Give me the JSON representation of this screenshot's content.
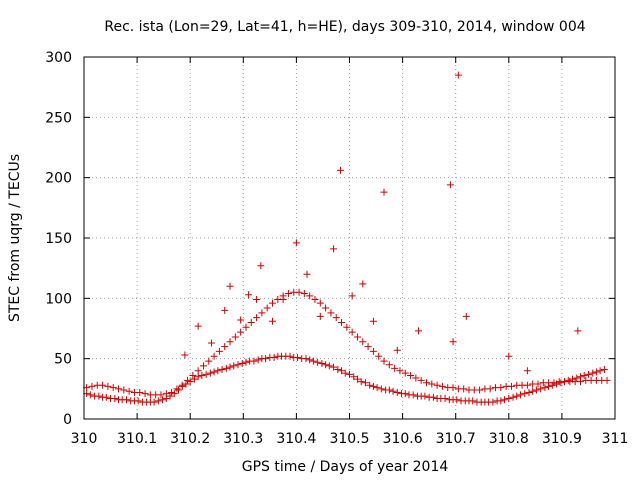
{
  "chart_data": {
    "type": "scatter",
    "title": "Rec. ista (Lon=29, Lat=41, h=HE), days 309-310, 2014, window 004",
    "xlabel": "GPS time / Days of year 2014",
    "ylabel": "STEC from uqrg / TECUs",
    "xlim": [
      310,
      311
    ],
    "ylim": [
      0,
      300
    ],
    "xticks": [
      "310",
      "310.1",
      "310.2",
      "310.3",
      "310.4",
      "310.5",
      "310.6",
      "310.7",
      "310.8",
      "310.9",
      "311"
    ],
    "yticks": [
      "0",
      "50",
      "100",
      "150",
      "200",
      "250",
      "300"
    ],
    "grid": true,
    "marker": "+",
    "color": "#d40000",
    "series": [
      {
        "x": [
          310.005,
          310.012,
          310.02,
          310.028,
          310.035,
          310.042,
          310.05,
          310.058,
          310.065,
          310.072,
          310.08,
          310.088,
          310.095,
          310.102,
          310.11,
          310.118,
          310.125,
          310.132,
          310.14,
          310.148,
          310.155,
          310.162,
          310.17,
          310.178,
          310.185,
          310.192,
          310.2,
          310.208,
          310.215,
          310.222,
          310.23,
          310.238,
          310.245,
          310.252,
          310.26,
          310.268,
          310.275,
          310.282,
          310.29,
          310.298,
          310.305,
          310.312,
          310.32,
          310.328,
          310.335,
          310.342,
          310.35,
          310.358,
          310.365,
          310.372,
          310.38,
          310.388,
          310.395,
          310.402,
          310.41,
          310.418,
          310.425,
          310.432,
          310.44,
          310.448,
          310.455,
          310.462,
          310.47,
          310.478,
          310.485,
          310.492,
          310.5,
          310.508,
          310.515,
          310.522,
          310.53,
          310.538,
          310.545,
          310.552,
          310.56,
          310.568,
          310.575,
          310.582,
          310.59,
          310.598,
          310.605,
          310.612,
          310.62,
          310.628,
          310.635,
          310.642,
          310.65,
          310.658,
          310.665,
          310.672,
          310.68,
          310.688,
          310.695,
          310.702,
          310.71,
          310.718,
          310.725,
          310.732,
          310.74,
          310.748,
          310.755,
          310.762,
          310.77,
          310.778,
          310.785,
          310.792,
          310.8,
          310.808,
          310.815,
          310.822,
          310.83,
          310.838,
          310.845,
          310.852,
          310.86,
          310.868,
          310.875,
          310.882,
          310.89,
          310.898,
          310.905,
          310.912,
          310.92,
          310.928,
          310.935,
          310.942,
          310.95,
          310.958,
          310.965,
          310.972,
          310.98
        ],
        "y": [
          21,
          20,
          19,
          19,
          18,
          18,
          17,
          17,
          16,
          16,
          16,
          15,
          15,
          15,
          14,
          14,
          14,
          14,
          15,
          16,
          17,
          19,
          21,
          24,
          27,
          29,
          31,
          33,
          35,
          36,
          37,
          38,
          39,
          40,
          41,
          42,
          43,
          44,
          45,
          46,
          47,
          48,
          48,
          49,
          50,
          50,
          51,
          51,
          52,
          52,
          52,
          52,
          51,
          51,
          50,
          50,
          49,
          48,
          47,
          46,
          45,
          44,
          43,
          41,
          40,
          38,
          37,
          35,
          33,
          31,
          30,
          28,
          27,
          26,
          25,
          24,
          24,
          23,
          22,
          21,
          21,
          20,
          20,
          19,
          19,
          19,
          18,
          18,
          17,
          17,
          17,
          16,
          16,
          16,
          15,
          15,
          15,
          15,
          14,
          14,
          14,
          14,
          14,
          15,
          15,
          16,
          17,
          18,
          19,
          20,
          21,
          22,
          23,
          24,
          25,
          26,
          27,
          28,
          29,
          30,
          31,
          32,
          33,
          34,
          35,
          36,
          37,
          38,
          39,
          40,
          41
        ]
      },
      {
        "x": [
          310.005,
          310.015,
          310.025,
          310.035,
          310.045,
          310.055,
          310.065,
          310.075,
          310.085,
          310.095,
          310.105,
          310.115,
          310.125,
          310.135,
          310.145,
          310.155,
          310.165,
          310.175,
          310.185,
          310.195,
          310.205,
          310.215,
          310.225,
          310.235,
          310.245,
          310.255,
          310.265,
          310.275,
          310.285,
          310.295,
          310.305,
          310.315,
          310.325,
          310.335,
          310.345,
          310.355,
          310.365,
          310.375,
          310.385,
          310.395,
          310.405,
          310.415,
          310.425,
          310.435,
          310.445,
          310.455,
          310.465,
          310.475,
          310.485,
          310.495,
          310.505,
          310.515,
          310.525,
          310.535,
          310.545,
          310.555,
          310.565,
          310.575,
          310.585,
          310.595,
          310.605,
          310.615,
          310.625,
          310.635,
          310.645,
          310.655,
          310.665,
          310.675,
          310.685,
          310.695,
          310.705,
          310.715,
          310.725,
          310.735,
          310.745,
          310.755,
          310.765,
          310.775,
          310.785,
          310.795,
          310.805,
          310.815,
          310.825,
          310.835,
          310.845,
          310.855,
          310.865,
          310.875,
          310.885,
          310.895,
          310.905,
          310.915,
          310.925,
          310.935,
          310.945,
          310.955,
          310.965,
          310.975,
          310.985
        ],
        "y": [
          26,
          27,
          28,
          28,
          27,
          26,
          25,
          24,
          23,
          22,
          22,
          21,
          20,
          20,
          20,
          21,
          22,
          25,
          28,
          32,
          36,
          40,
          44,
          48,
          52,
          56,
          60,
          64,
          68,
          72,
          76,
          80,
          84,
          88,
          92,
          96,
          99,
          102,
          104,
          105,
          105,
          104,
          102,
          99,
          96,
          92,
          88,
          84,
          80,
          76,
          72,
          68,
          64,
          60,
          56,
          52,
          48,
          45,
          42,
          40,
          38,
          36,
          34,
          32,
          30,
          29,
          28,
          27,
          26,
          26,
          25,
          25,
          24,
          24,
          24,
          25,
          25,
          26,
          26,
          27,
          27,
          28,
          28,
          28,
          29,
          29,
          30,
          30,
          30,
          31,
          31,
          31,
          31,
          31,
          32,
          32,
          32,
          32,
          32
        ]
      },
      {
        "x": [
          310.19,
          310.215,
          310.24,
          310.265,
          310.275,
          310.295,
          310.31,
          310.325,
          310.333,
          310.355,
          310.375,
          310.4,
          310.42,
          310.445,
          310.47,
          310.483,
          310.505,
          310.525,
          310.545,
          310.565,
          310.59,
          310.63,
          310.69,
          310.695,
          310.705,
          310.72,
          310.8,
          310.835,
          310.93
        ],
        "y": [
          53,
          77,
          63,
          90,
          110,
          82,
          103,
          99,
          127,
          81,
          99,
          146,
          120,
          85,
          141,
          206,
          102,
          112,
          81,
          188,
          57,
          73,
          194,
          64,
          285,
          85,
          52,
          40,
          73
        ]
      }
    ]
  }
}
